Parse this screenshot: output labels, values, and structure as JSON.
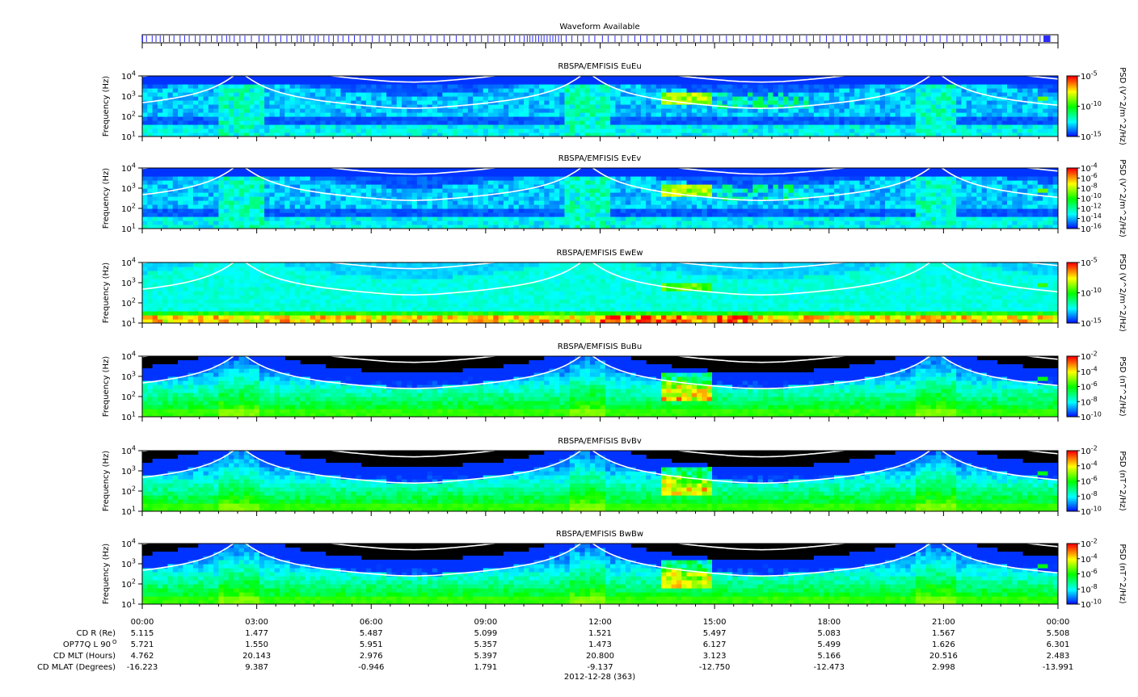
{
  "waveform": {
    "title": "Waveform Available",
    "segments_hours": [
      [
        0.0,
        0.02
      ],
      [
        0.1,
        0.12
      ],
      [
        0.25,
        0.26
      ],
      [
        0.35,
        0.36
      ],
      [
        0.46,
        0.47
      ],
      [
        0.55,
        0.57
      ],
      [
        0.7,
        0.71
      ],
      [
        0.82,
        0.84
      ],
      [
        0.98,
        0.99
      ],
      [
        1.1,
        1.12
      ],
      [
        1.22,
        1.23
      ],
      [
        1.38,
        1.39
      ],
      [
        1.5,
        1.52
      ],
      [
        1.66,
        1.67
      ],
      [
        1.8,
        1.81
      ],
      [
        1.95,
        1.96
      ],
      [
        2.08,
        2.1
      ],
      [
        2.2,
        2.21
      ],
      [
        2.28,
        2.29
      ],
      [
        2.4,
        2.41
      ],
      [
        2.55,
        2.56
      ],
      [
        2.68,
        2.69
      ],
      [
        2.85,
        2.86
      ],
      [
        3.05,
        3.06
      ],
      [
        3.18,
        3.19
      ],
      [
        3.3,
        3.31
      ],
      [
        3.48,
        3.49
      ],
      [
        3.62,
        3.63
      ],
      [
        3.78,
        3.79
      ],
      [
        3.9,
        3.91
      ],
      [
        4.05,
        4.06
      ],
      [
        4.15,
        4.16
      ],
      [
        4.22,
        4.23
      ],
      [
        4.38,
        4.39
      ],
      [
        4.52,
        4.53
      ],
      [
        4.6,
        4.61
      ],
      [
        4.75,
        4.76
      ],
      [
        4.88,
        4.89
      ],
      [
        5.0,
        5.01
      ],
      [
        5.12,
        5.13
      ],
      [
        5.25,
        5.27
      ],
      [
        5.4,
        5.41
      ],
      [
        5.55,
        5.56
      ],
      [
        5.7,
        5.71
      ],
      [
        5.85,
        5.86
      ],
      [
        6.02,
        6.03
      ],
      [
        6.2,
        6.21
      ],
      [
        6.35,
        6.36
      ],
      [
        6.52,
        6.53
      ],
      [
        6.68,
        6.69
      ],
      [
        6.85,
        6.86
      ],
      [
        7.02,
        7.03
      ],
      [
        7.2,
        7.21
      ],
      [
        7.38,
        7.39
      ],
      [
        7.55,
        7.56
      ],
      [
        7.72,
        7.73
      ],
      [
        7.9,
        7.91
      ],
      [
        8.05,
        8.06
      ],
      [
        8.22,
        8.23
      ],
      [
        8.4,
        8.41
      ],
      [
        8.58,
        8.59
      ],
      [
        8.72,
        8.73
      ],
      [
        8.88,
        8.89
      ],
      [
        9.05,
        9.06
      ],
      [
        9.2,
        9.21
      ],
      [
        9.35,
        9.36
      ],
      [
        9.5,
        9.51
      ],
      [
        9.62,
        9.63
      ],
      [
        9.75,
        9.76
      ],
      [
        9.88,
        9.89
      ],
      [
        10.0,
        10.02
      ],
      [
        10.08,
        10.1
      ],
      [
        10.15,
        10.17
      ],
      [
        10.22,
        10.24
      ],
      [
        10.3,
        10.32
      ],
      [
        10.38,
        10.4
      ],
      [
        10.45,
        10.47
      ],
      [
        10.52,
        10.54
      ],
      [
        10.6,
        10.62
      ],
      [
        10.68,
        10.7
      ],
      [
        10.75,
        10.77
      ],
      [
        10.82,
        10.84
      ],
      [
        10.9,
        10.92
      ],
      [
        10.97,
        10.99
      ],
      [
        11.1,
        11.11
      ],
      [
        11.25,
        11.26
      ],
      [
        11.4,
        11.41
      ],
      [
        11.55,
        11.56
      ],
      [
        11.7,
        11.71
      ],
      [
        11.85,
        11.86
      ],
      [
        12.05,
        12.06
      ],
      [
        12.2,
        12.21
      ],
      [
        12.38,
        12.39
      ],
      [
        12.55,
        12.56
      ],
      [
        12.72,
        12.73
      ],
      [
        12.9,
        12.91
      ],
      [
        13.05,
        13.06
      ],
      [
        13.22,
        13.23
      ],
      [
        13.4,
        13.41
      ],
      [
        13.58,
        13.59
      ],
      [
        13.75,
        13.76
      ],
      [
        13.92,
        13.93
      ],
      [
        14.1,
        14.11
      ],
      [
        14.28,
        14.29
      ],
      [
        14.45,
        14.46
      ],
      [
        14.62,
        14.63
      ],
      [
        14.8,
        14.81
      ],
      [
        14.95,
        14.96
      ],
      [
        15.12,
        15.13
      ],
      [
        15.3,
        15.31
      ],
      [
        15.48,
        15.49
      ],
      [
        15.65,
        15.66
      ],
      [
        15.82,
        15.83
      ],
      [
        16.0,
        16.01
      ],
      [
        16.18,
        16.19
      ],
      [
        16.35,
        16.36
      ],
      [
        16.52,
        16.53
      ],
      [
        16.7,
        16.71
      ],
      [
        16.88,
        16.89
      ],
      [
        17.05,
        17.06
      ],
      [
        17.22,
        17.23
      ],
      [
        17.4,
        17.41
      ],
      [
        17.58,
        17.59
      ],
      [
        17.75,
        17.76
      ],
      [
        17.92,
        17.93
      ],
      [
        18.1,
        18.11
      ],
      [
        18.28,
        18.29
      ],
      [
        18.45,
        18.46
      ],
      [
        18.62,
        18.63
      ],
      [
        18.8,
        18.81
      ],
      [
        18.98,
        18.99
      ],
      [
        19.15,
        19.16
      ],
      [
        19.32,
        19.33
      ],
      [
        19.5,
        19.51
      ],
      [
        19.68,
        19.69
      ],
      [
        19.85,
        19.86
      ],
      [
        20.02,
        20.03
      ],
      [
        20.2,
        20.21
      ],
      [
        20.38,
        20.39
      ],
      [
        20.55,
        20.56
      ],
      [
        20.72,
        20.73
      ],
      [
        20.9,
        20.91
      ],
      [
        21.08,
        21.09
      ],
      [
        21.25,
        21.26
      ],
      [
        21.42,
        21.43
      ],
      [
        21.6,
        21.61
      ],
      [
        21.78,
        21.79
      ],
      [
        21.95,
        21.96
      ],
      [
        22.12,
        22.13
      ],
      [
        22.3,
        22.31
      ],
      [
        22.48,
        22.49
      ],
      [
        22.65,
        22.66
      ],
      [
        22.82,
        22.83
      ],
      [
        23.0,
        23.01
      ],
      [
        23.18,
        23.19
      ],
      [
        23.35,
        23.36
      ],
      [
        23.52,
        23.53
      ],
      [
        23.62,
        23.8
      ]
    ]
  },
  "panels": [
    {
      "title": "RBSPA/EMFISIS  EuEu",
      "ylabel": "Frequency (Hz)",
      "cbar_label": "PSD (V^2/m^2/Hz)",
      "cbar_ticks": [
        "10^-5",
        "10^-10",
        "10^-15"
      ],
      "background": "quiet",
      "ground_band": false
    },
    {
      "title": "RBSPA/EMFISIS  EvEv",
      "ylabel": "Frequency (Hz)",
      "cbar_label": "PSD (V^2/m^2/Hz)",
      "cbar_ticks": [
        "10^-4",
        "10^-6",
        "10^-8",
        "10^-10",
        "10^-12",
        "10^-14",
        "10^-16"
      ],
      "background": "quiet",
      "ground_band": false
    },
    {
      "title": "RBSPA/EMFISIS  EwEw",
      "ylabel": "Frequency (Hz)",
      "cbar_label": "PSD (V^2/m^2/Hz)",
      "cbar_ticks": [
        "10^-5",
        "10^-10",
        "10^-15"
      ],
      "background": "noisy",
      "ground_band": true
    },
    {
      "title": "RBSPA/EMFISIS  BuBu",
      "ylabel": "Frequency (Hz)",
      "cbar_label": "PSD (nT^2/Hz)",
      "cbar_ticks": [
        "10^-2",
        "10^-4",
        "10^-6",
        "10^-8",
        "10^-10"
      ],
      "background": "magnetic",
      "ground_band": false
    },
    {
      "title": "RBSPA/EMFISIS  BvBv",
      "ylabel": "Frequency (Hz)",
      "cbar_label": "PSD (nT^2/Hz)",
      "cbar_ticks": [
        "10^-2",
        "10^-4",
        "10^-6",
        "10^-8",
        "10^-10"
      ],
      "background": "magnetic",
      "ground_band": false
    },
    {
      "title": "RBSPA/EMFISIS  BwBw",
      "ylabel": "Frequency (Hz)",
      "cbar_label": "PSD (nT^2/Hz)",
      "cbar_ticks": [
        "10^-2",
        "10^-4",
        "10^-6",
        "10^-8",
        "10^-10"
      ],
      "background": "magnetic",
      "ground_band": false
    }
  ],
  "chart_data": {
    "type": "heatmap",
    "panel_count": 6,
    "x_range_hours": [
      0,
      24
    ],
    "y_range_hz": [
      10,
      10000
    ],
    "y_scale": "log",
    "y_ticks": [
      "10^1",
      "10^2",
      "10^3",
      "10^4"
    ],
    "white_curve_label": "electron cyclotron frequency (fce, 0.5 fce overlays)",
    "white_curve_perigees_hours": [
      2.55,
      11.65,
      20.8
    ],
    "white_curve_perigee_spread": [
      0.35,
      0.35,
      0.35
    ],
    "white_curve_min_log10_fce": [
      3.35,
      3.35,
      3.35
    ],
    "x_ticks": [
      "00:00",
      "03:00",
      "06:00",
      "09:00",
      "12:00",
      "15:00",
      "18:00",
      "21:00",
      "00:00"
    ],
    "chorus_feature_hours": [
      13.6,
      15.0
    ],
    "colormap": [
      "#0000ff",
      "#00ffff",
      "#00ff00",
      "#ffff00",
      "#ff0000"
    ]
  },
  "ephemeris": {
    "rows": [
      {
        "label": "CD R (Re)",
        "values": [
          "5.115",
          "1.477",
          "5.487",
          "5.099",
          "1.521",
          "5.497",
          "5.083",
          "1.567",
          "5.508"
        ]
      },
      {
        "label": "OP77Q L 90",
        "sup": "O",
        "values": [
          "5.721",
          "1.550",
          "5.951",
          "5.357",
          "1.473",
          "6.127",
          "5.499",
          "1.626",
          "6.301"
        ]
      },
      {
        "label": "CD MLT (Hours)",
        "values": [
          "4.762",
          "20.143",
          "2.976",
          "5.397",
          "20.800",
          "3.123",
          "5.166",
          "20.516",
          "2.483"
        ]
      },
      {
        "label": "CD MLAT (Degrees)",
        "values": [
          "-16.223",
          "9.387",
          "-0.946",
          "1.791",
          "-9.137",
          "-12.750",
          "-12.473",
          "2.998",
          "-13.991"
        ]
      }
    ],
    "date_label": "2012-12-28 (363)"
  }
}
